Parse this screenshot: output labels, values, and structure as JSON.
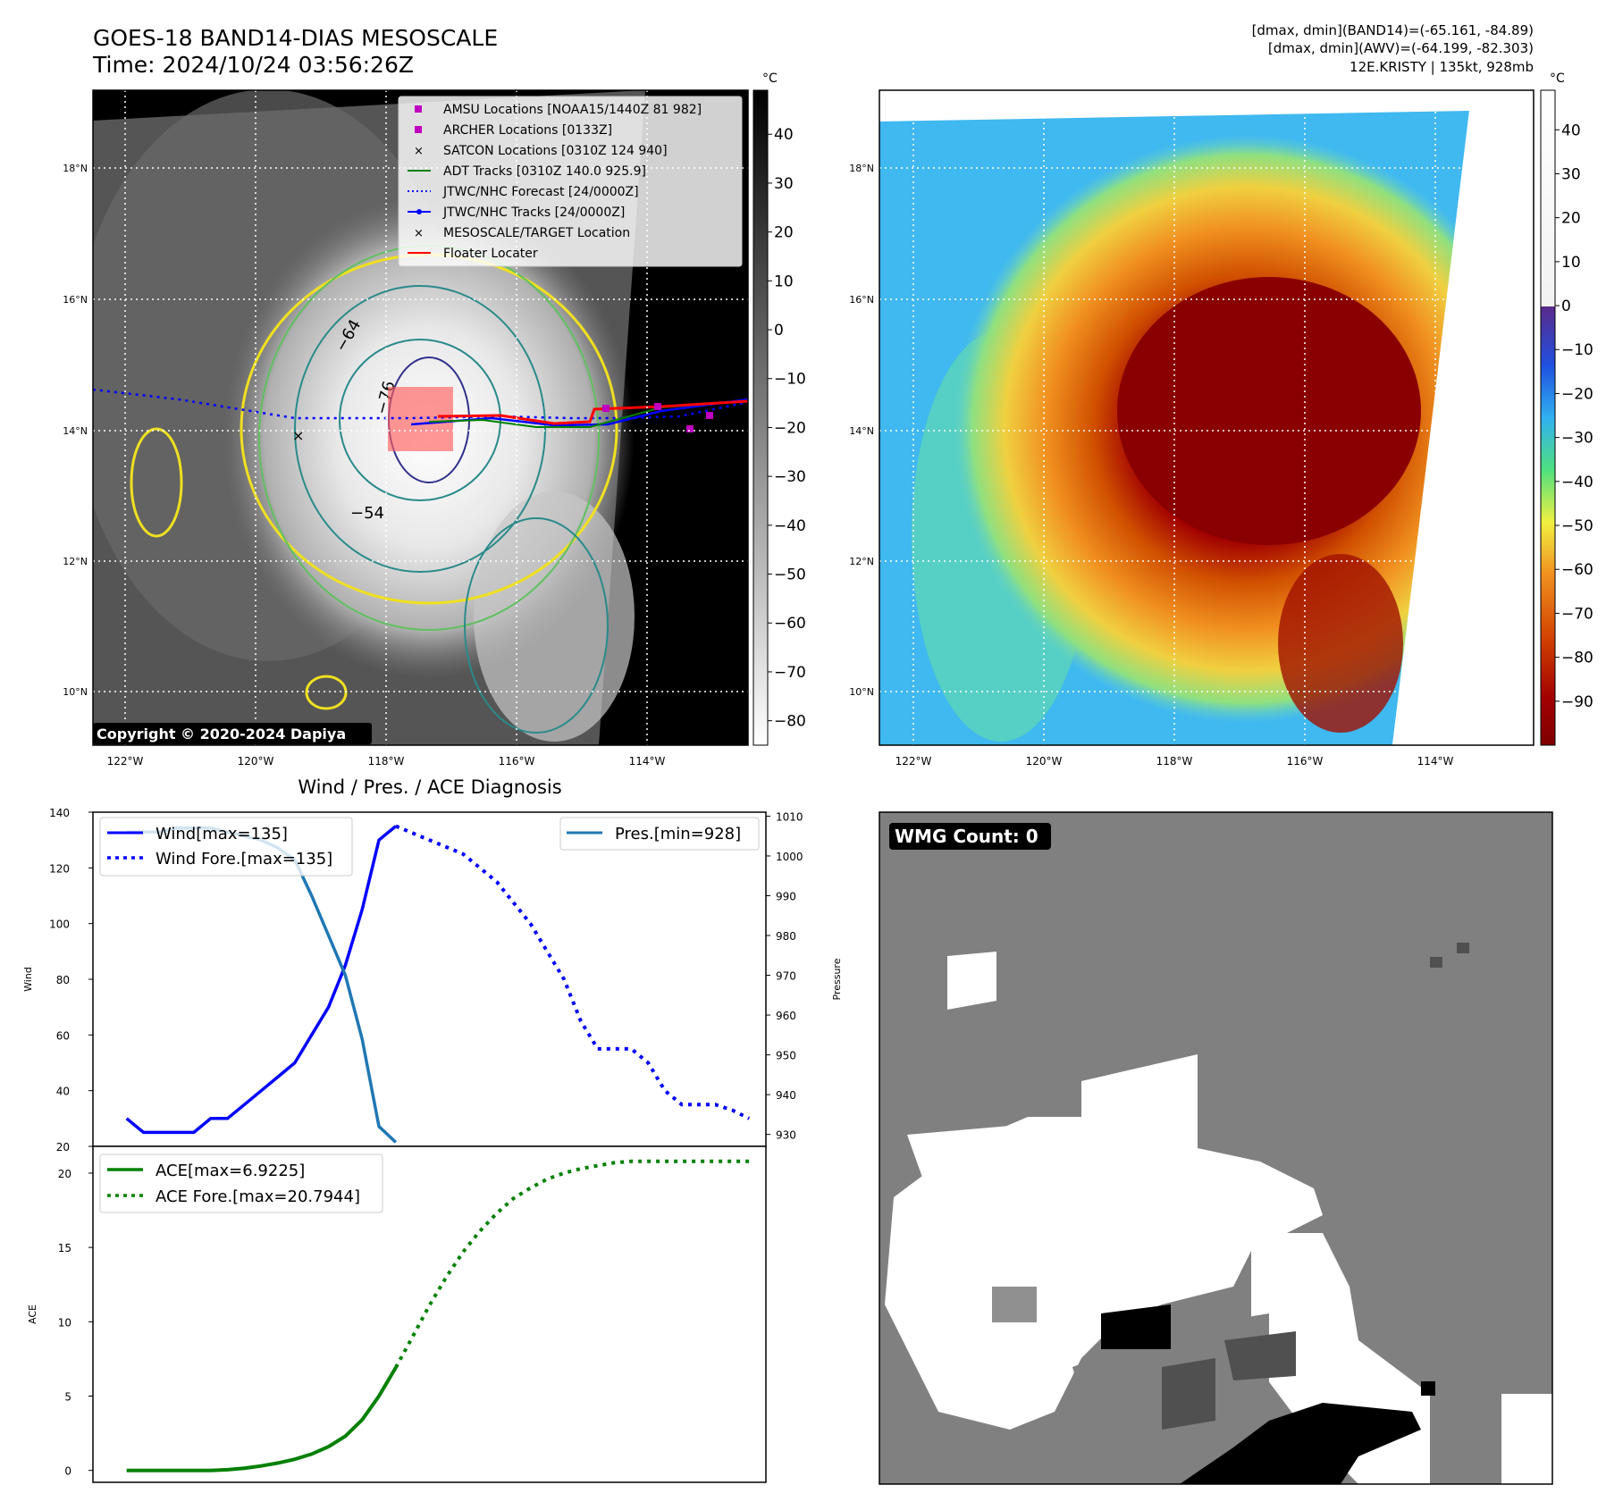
{
  "header": {
    "title_line1": "GOES-18 BAND14-DIAS MESOSCALE",
    "title_line2": "Time: 2024/10/24 03:56:26Z",
    "info_line1": "[dmax, dmin](BAND14)=(-65.161, -84.89)",
    "info_line2": "[dmax, dmin](AWV)=(-64.199, -82.303)",
    "info_line3": "12E.KRISTY | 135kt, 928mb"
  },
  "map_left": {
    "copyright": "Copyright © 2020-2024 Dapiya",
    "colorbar_unit": "°C",
    "colorbar_ticks": [
      "40",
      "30",
      "20",
      "10",
      "0",
      "−10",
      "−20",
      "−30",
      "−40",
      "−50",
      "−60",
      "−70",
      "−80"
    ],
    "lat_labels": [
      "18°N",
      "16°N",
      "14°N",
      "12°N",
      "10°N"
    ],
    "lon_labels": [
      "122°W",
      "120°W",
      "118°W",
      "116°W",
      "114°W"
    ],
    "contour_labels": [
      "−64",
      "−76",
      "−54"
    ],
    "legend": [
      {
        "label": "AMSU Locations [NOAA15/1440Z 81 982]",
        "color": "#c000c0",
        "marker": "square"
      },
      {
        "label": "ARCHER Locations [0133Z]",
        "color": "#c000c0",
        "marker": "square"
      },
      {
        "label": "SATCON Locations [0310Z 124 940]",
        "color": "#20b0b0",
        "marker": "x"
      },
      {
        "label": "ADT Tracks [0310Z 140.0 925.9]",
        "color": "#008000",
        "marker": "line"
      },
      {
        "label": "JTWC/NHC Forecast [24/0000Z]",
        "color": "#0000ff",
        "marker": "dotted"
      },
      {
        "label": "JTWC/NHC Tracks [24/0000Z]",
        "color": "#0000ff",
        "marker": "line-dot"
      },
      {
        "label": "MESOSCALE/TARGET Location",
        "color": "#ff0000",
        "marker": "x"
      },
      {
        "label": "Floater Locater",
        "color": "#ff0000",
        "marker": "line"
      }
    ]
  },
  "map_right": {
    "colorbar_unit": "°C",
    "colorbar_ticks": [
      "40",
      "30",
      "20",
      "10",
      "0",
      "−10",
      "−20",
      "−30",
      "−40",
      "−50",
      "−60",
      "−70",
      "−80",
      "−90"
    ],
    "lat_labels": [
      "18°N",
      "16°N",
      "14°N",
      "12°N",
      "10°N"
    ],
    "lon_labels": [
      "122°W",
      "120°W",
      "118°W",
      "116°W",
      "114°W"
    ]
  },
  "wmg": {
    "label": "WMG Count: 0"
  },
  "chart_data": [
    {
      "type": "line",
      "title": "Wind / Pres. / ACE Diagnosis",
      "ylabel": "Wind",
      "y2label": "Pressure",
      "ylim": [
        20,
        140
      ],
      "y2lim": [
        927,
        1011
      ],
      "yticks": [
        "20",
        "40",
        "60",
        "80",
        "100",
        "120",
        "140"
      ],
      "y2ticks": [
        "930",
        "940",
        "950",
        "960",
        "970",
        "980",
        "990",
        "1000",
        "1010"
      ],
      "series": [
        {
          "name": "Wind[max=135]",
          "style": "solid",
          "color": "#0000ff",
          "x": [
            0,
            1,
            2,
            3,
            4,
            5,
            6,
            7,
            8,
            9,
            10,
            11,
            12,
            13,
            14,
            15,
            16
          ],
          "values": [
            30,
            25,
            25,
            25,
            25,
            30,
            30,
            35,
            40,
            45,
            50,
            60,
            70,
            85,
            105,
            130,
            135
          ]
        },
        {
          "name": "Wind Fore.[max=135]",
          "style": "dotted",
          "color": "#0000ff",
          "x": [
            16,
            18,
            20,
            22,
            24,
            26,
            27,
            28,
            29,
            30,
            31,
            32,
            33,
            34,
            35,
            36,
            37
          ],
          "values": [
            135,
            130,
            125,
            115,
            100,
            80,
            65,
            55,
            55,
            55,
            50,
            40,
            35,
            35,
            35,
            33,
            30
          ]
        },
        {
          "name": "Pres.[min=928]",
          "style": "solid",
          "color": "#1f77b4",
          "axis": "right",
          "x": [
            0,
            1,
            2,
            3,
            4,
            5,
            6,
            7,
            8,
            9,
            10,
            11,
            12,
            13,
            14,
            15,
            16
          ],
          "values": [
            1006,
            1006,
            1006,
            1007,
            1007,
            1007,
            1006,
            1005,
            1004,
            1002,
            999,
            990,
            980,
            970,
            954,
            932,
            928
          ]
        }
      ]
    },
    {
      "type": "line",
      "ylabel": "ACE",
      "ylim": [
        -0.8,
        21.8
      ],
      "yticks": [
        "0",
        "5",
        "10",
        "15",
        "20"
      ],
      "series": [
        {
          "name": "ACE[max=6.9225]",
          "style": "solid",
          "color": "#008000",
          "x": [
            0,
            1,
            2,
            3,
            4,
            5,
            6,
            7,
            8,
            9,
            10,
            11,
            12,
            13,
            14,
            15,
            16
          ],
          "values": [
            0,
            0,
            0,
            0,
            0,
            0,
            0.05,
            0.15,
            0.3,
            0.5,
            0.75,
            1.1,
            1.6,
            2.3,
            3.4,
            5.0,
            6.9225
          ]
        },
        {
          "name": "ACE Fore.[max=20.7944]",
          "style": "dotted",
          "color": "#008000",
          "x": [
            16,
            17,
            18,
            19,
            20,
            21,
            22,
            23,
            24,
            25,
            26,
            27,
            28,
            29,
            30,
            31,
            32,
            33,
            34,
            35,
            36,
            37
          ],
          "values": [
            6.9225,
            9.0,
            11.1,
            13.0,
            14.7,
            16.1,
            17.3,
            18.3,
            19.0,
            19.6,
            20.0,
            20.3,
            20.5,
            20.7,
            20.79,
            20.79,
            20.79,
            20.79,
            20.79,
            20.79,
            20.79,
            20.79
          ]
        }
      ]
    }
  ]
}
